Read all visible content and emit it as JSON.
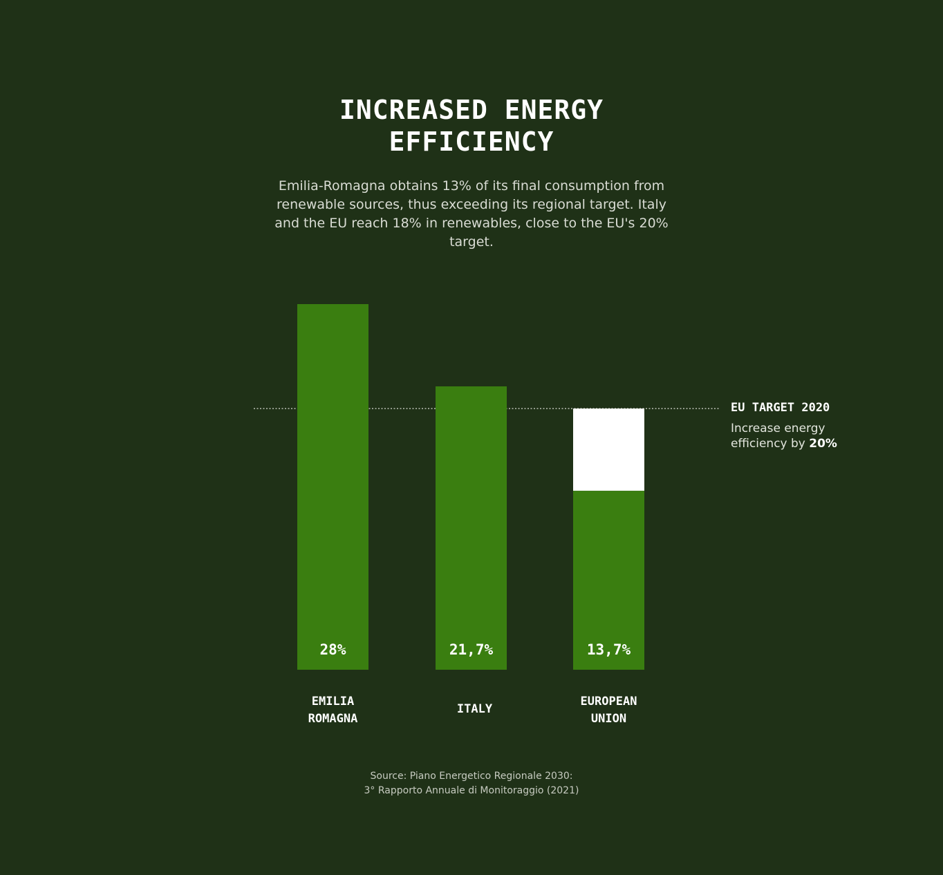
{
  "header": {
    "title_line1": "INCREASED ENERGY",
    "title_line2": "EFFICIENCY",
    "subtitle": "Emilia-Romagna obtains 13% of its final consumption from renewable sources, thus exceeding its regional target. Italy and the EU reach 18% in renewables, close to the EU's 20% target."
  },
  "target_annotation": {
    "title": "EU TARGET 2020",
    "desc_prefix": "Increase energy efficiency by ",
    "desc_value": "20%"
  },
  "source": {
    "line1": "Source: Piano Energetico Regionale 2030:",
    "line2": "3° Rapporto Annuale di Monitoraggio (2021)"
  },
  "colors": {
    "background": "#1f3117",
    "bar": "#3a7e10",
    "gap": "#ffffff"
  },
  "chart_data": {
    "type": "bar",
    "title": "INCREASED ENERGY EFFICIENCY",
    "categories": [
      [
        "EMILIA",
        "ROMAGNA"
      ],
      [
        "ITALY"
      ],
      [
        "EUROPEAN",
        "UNION"
      ]
    ],
    "values": [
      28,
      21.7,
      13.7
    ],
    "value_labels": [
      "28%",
      "21,7%",
      "13,7%"
    ],
    "target": 20,
    "target_label": "EU TARGET 2020",
    "ylim": [
      0,
      28
    ],
    "grid": false,
    "legend": "none",
    "xlabel": "",
    "ylabel": ""
  }
}
